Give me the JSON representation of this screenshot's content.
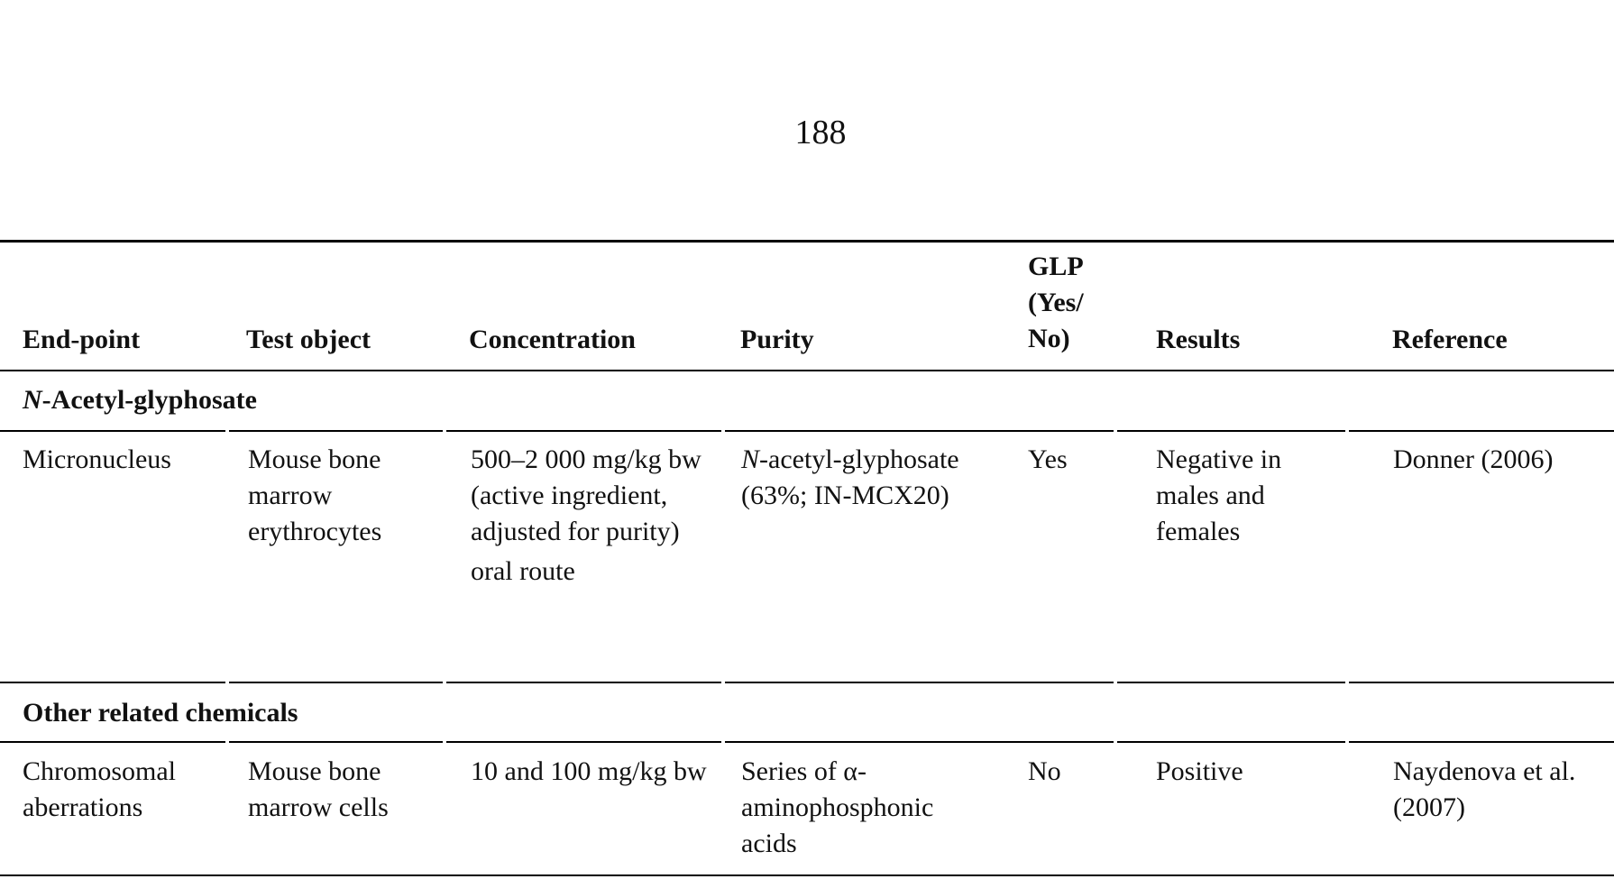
{
  "page_number": "188",
  "table": {
    "headers": {
      "endpoint": "End-point",
      "test_object": "Test object",
      "concentration": "Concentration",
      "purity": "Purity",
      "glp_line1": "GLP",
      "glp_line2": "(Yes/",
      "glp_line3": "No)",
      "results": "Results",
      "reference": "Reference"
    },
    "sections": [
      {
        "title_italic": "N",
        "title_rest": "-Acetyl-glyphosate",
        "rows": [
          {
            "endpoint": "Micronucleus",
            "test_object": "Mouse bone marrow erythrocytes",
            "concentration": "500–2 000 mg/kg bw (active ingredient, adjusted for purity)",
            "concentration_extra": "oral route",
            "purity_italic": "N",
            "purity_rest": "-acetyl-glyphosate (63%; IN-MCX20)",
            "glp": "Yes",
            "results": "Negative in males and females",
            "reference": "Donner (2006)"
          }
        ]
      },
      {
        "title": "Other related chemicals",
        "rows": [
          {
            "endpoint": "Chromosomal aberrations",
            "test_object": "Mouse bone marrow cells",
            "concentration": "10 and 100 mg/kg bw",
            "purity": "Series of α-aminophosphonic acids",
            "glp": "No",
            "results": "Positive",
            "reference": "Naydenova et al. (2007)"
          }
        ]
      }
    ]
  }
}
